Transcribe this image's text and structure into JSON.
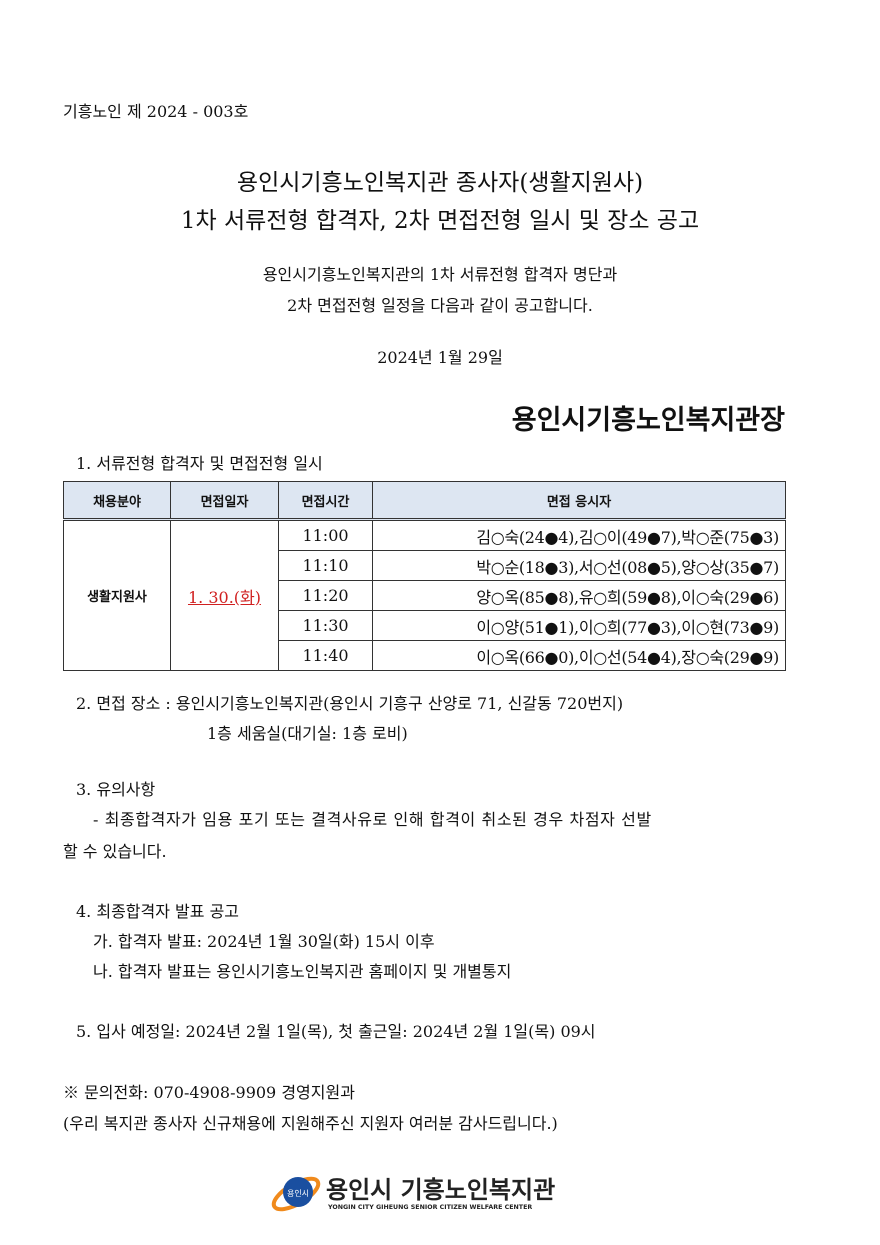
{
  "doc_number": "기흥노인 제 2024 - 003호",
  "title_line1": "용인시기흥노인복지관 종사자(생활지원사)",
  "title_line2": "1차 서류전형 합격자, 2차 면접전형 일시 및 장소 공고",
  "intro_line1": "용인시기흥노인복지관의 1차 서류전형 합격자 명단과",
  "intro_line2": "2차 면접전형 일정을 다음과 같이 공고합니다.",
  "date": "2024년  1월  29일",
  "issuer": "용인시기흥노인복지관장",
  "section1": "1. 서류전형 합격자   및 면접전형 일시",
  "table": {
    "headers": [
      "채용분야",
      "면접일자",
      "면접시간",
      "면접 응시자"
    ],
    "field": "생활지원사",
    "interview_date": "1. 30.(화)",
    "rows": [
      {
        "time": "11:00",
        "names": "김○숙(24●4),김○이(49●7),박○준(75●3)"
      },
      {
        "time": "11:10",
        "names": "박○순(18●3),서○선(08●5),양○상(35●7)"
      },
      {
        "time": "11:20",
        "names": "양○옥(85●8),유○희(59●8),이○숙(29●6)"
      },
      {
        "time": "11:30",
        "names": "이○양(51●1),이○희(77●3),이○현(73●9)"
      },
      {
        "time": "11:40",
        "names": "이○옥(66●0),이○선(54●4),장○숙(29●9)"
      }
    ]
  },
  "section2_line1": "2. 면접 장소 : 용인시기흥노인복지관(용인시 기흥구 산양로 71, 신갈동 720번지)",
  "section2_line2": "1층 세움실(대기실: 1층 로비)",
  "section3": "3. 유의사항",
  "section3_line1": "- 최종합격자가 임용 포기 또는 결격사유로 인해 합격이 취소된 경우 차점자 선발",
  "section3_line2": "할 수 있습니다.",
  "section4": "4. 최종합격자 발표 공고",
  "section4_a": "가. 합격자 발표: 2024년 1월 30일(화) 15시 이후",
  "section4_b": "나. 합격자 발표는 용인시기흥노인복지관 홈페이지 및 개별통지",
  "section5": "5. 입사 예정일: 2024년 2월 1일(목), 첫 출근일: 2024년 2월 1일(목) 09시",
  "contact": "※ 문의전화: 070-4908-9909 경영지원과",
  "thanks": "(우리 복지관 종사자 신규채용에 지원해주신 지원자 여러분 감사드립니다.)",
  "logo": {
    "badge": "용인시",
    "name": "용인시 기흥노인복지관",
    "english": "YONGIN CITY GIHEUNG SENIOR CITIZEN WELFARE CENTER"
  },
  "colors": {
    "date_red": "#d02020",
    "header_bg": "#dde6f2",
    "logo_blue": "#1a4fa0",
    "logo_orange": "#f08a1c"
  }
}
